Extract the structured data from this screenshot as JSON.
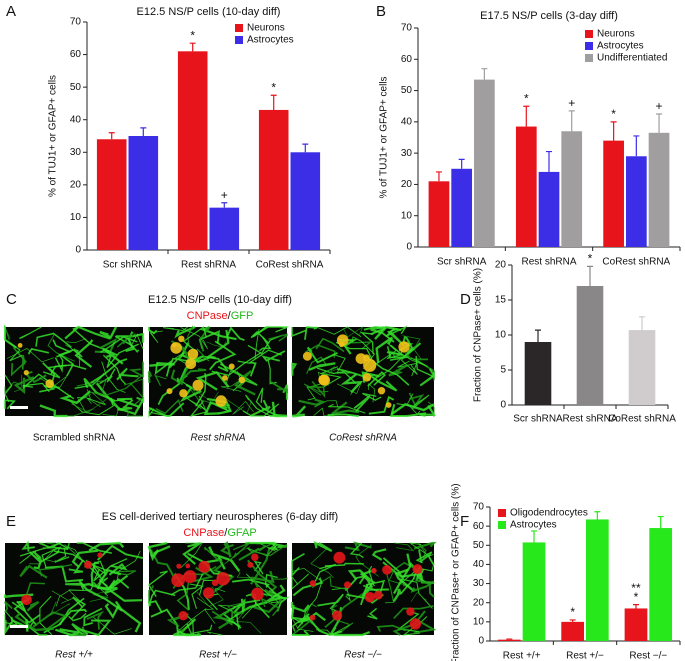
{
  "panels": {
    "a": "A",
    "b": "B",
    "c": "C",
    "d": "D",
    "e": "E",
    "f": "F"
  },
  "chart_data": [
    {
      "type": "bar",
      "title": "E12.5 NS/P cells (10-day diff)",
      "y_label": "% of TUJ1+ or GFAP+ cells",
      "categories": [
        "Scr shRNA",
        "Rest shRNA",
        "CoRest shRNA"
      ],
      "series": [
        {
          "name": "Neurons",
          "color": "#e8141b",
          "values": [
            34,
            61,
            43
          ],
          "errors": [
            2,
            2.5,
            4.5
          ],
          "annotations": [
            null,
            [
              "*"
            ],
            [
              "*"
            ]
          ]
        },
        {
          "name": "Astrocytes",
          "color": "#3b2ee6",
          "values": [
            35,
            13,
            30
          ],
          "errors": [
            2.5,
            1.5,
            2.5
          ],
          "annotations": [
            null,
            [
              "+"
            ],
            null
          ]
        }
      ],
      "ylim": [
        0,
        70
      ],
      "yticks": [
        0,
        10,
        20,
        30,
        40,
        50,
        60,
        70
      ],
      "legend": "upper right"
    },
    {
      "type": "bar",
      "title": "E17.5 NS/P cells (3-day diff)",
      "y_label": "% of TUJ1+ or GFAP+ cells",
      "categories": [
        "Scr shRNA",
        "Rest shRNA",
        "CoRest shRNA"
      ],
      "series": [
        {
          "name": "Neurons",
          "color": "#e8141b",
          "values": [
            21,
            38.5,
            34
          ],
          "errors": [
            3,
            6.5,
            6
          ],
          "annotations": [
            null,
            [
              "*"
            ],
            [
              "*"
            ]
          ]
        },
        {
          "name": "Astrocytes",
          "color": "#3b2ee6",
          "values": [
            25,
            24,
            29
          ],
          "errors": [
            3,
            6.5,
            6.5
          ],
          "annotations": [
            null,
            null,
            null
          ]
        },
        {
          "name": "Undifferentiated",
          "color": "#a09e9f",
          "values": [
            53.5,
            37,
            36.5
          ],
          "errors": [
            3.5,
            6.5,
            6
          ],
          "annotations": [
            null,
            [
              "+"
            ],
            [
              "+"
            ]
          ]
        }
      ],
      "ylim": [
        0,
        70
      ],
      "yticks": [
        0,
        10,
        20,
        30,
        40,
        50,
        60,
        70
      ],
      "legend": "upper right"
    },
    {
      "type": "bar",
      "y_label": "Fraction of CNPase+ cells (%)",
      "categories": [
        "Scr shRNA",
        "Rest shRNA",
        "CoRest shRNA"
      ],
      "values": [
        9,
        17,
        10.7
      ],
      "errors": [
        1.7,
        2.8,
        1.9
      ],
      "colors": [
        "#2b2728",
        "#8a8788",
        "#d0cbcc"
      ],
      "annotations": [
        null,
        [
          "*"
        ],
        null
      ],
      "ylim": [
        0,
        20
      ],
      "yticks": [
        0,
        5,
        10,
        15,
        20
      ]
    },
    {
      "type": "bar",
      "y_label": "Fraction of CNPase+ or GFAP+ cells (%)",
      "categories": [
        "Rest +/+",
        "Rest +/−",
        "Rest −/−"
      ],
      "series": [
        {
          "name": "Oligodendrocytes",
          "color": "#e8141b",
          "values": [
            0.7,
            10,
            17
          ],
          "errors": [
            0.3,
            1,
            2
          ],
          "annotations": [
            null,
            [
              "*"
            ],
            [
              "**",
              "*"
            ]
          ]
        },
        {
          "name": "Astrocytes",
          "color": "#27e81a",
          "values": [
            51.5,
            63.5,
            59
          ],
          "errors": [
            6,
            4,
            6
          ],
          "annotations": [
            null,
            null,
            null
          ]
        }
      ],
      "ylim": [
        0,
        70
      ],
      "yticks": [
        0,
        10,
        20,
        30,
        40,
        50,
        60,
        70
      ],
      "legend": "upper left"
    }
  ],
  "images": [
    {
      "title": "E12.5 NS/P cells (10-day diff)",
      "stain_red": "CNPase",
      "sep": "/",
      "stain_green": "GFP",
      "captions": [
        "Scrambled shRNA",
        "Rest shRNA",
        "CoRest shRNA"
      ]
    },
    {
      "title": "ES cell-derived tertiary neurospheres (6-day diff)",
      "stain_red": "CNPase",
      "sep": "/",
      "stain_green": "GFAP",
      "captions": [
        "Rest +/+",
        "Rest +/−",
        "Rest −/−"
      ]
    }
  ]
}
